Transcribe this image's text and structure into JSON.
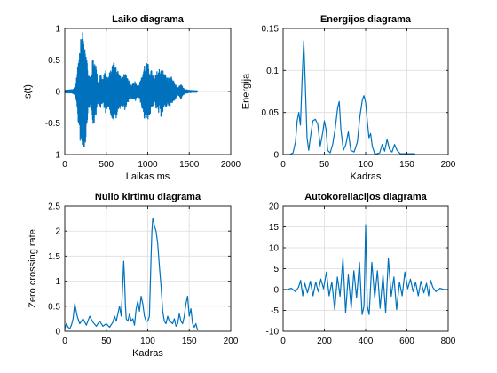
{
  "chart_data": [
    {
      "id": "laiko",
      "type": "line",
      "title": "Laiko diagrama",
      "xlabel": "Laikas ms",
      "ylabel": "s(t)",
      "xlim": [
        0,
        2000
      ],
      "ylim": [
        -1,
        1
      ],
      "xticks": [
        0,
        500,
        1000,
        1500,
        2000
      ],
      "yticks": [
        -1,
        -0.5,
        0,
        0.5,
        1
      ],
      "grid": true,
      "series": [
        {
          "color": "#0072bd",
          "style": "waveform",
          "x": [
            0,
            100,
            130,
            160,
            190,
            220,
            250,
            280,
            310,
            340,
            370,
            400,
            430,
            460,
            490,
            520,
            560,
            600,
            640,
            680,
            720,
            760,
            800,
            840,
            880,
            920,
            960,
            1000,
            1040,
            1080,
            1120,
            1160,
            1200,
            1240,
            1280,
            1320,
            1360,
            1400,
            1430,
            1460,
            1500,
            1600
          ],
          "y": [
            0.02,
            0.03,
            0.1,
            0.48,
            0.85,
            0.95,
            0.85,
            0.3,
            0.25,
            0.55,
            0.5,
            0.15,
            0.3,
            0.2,
            0.35,
            0.22,
            0.4,
            0.52,
            0.35,
            0.22,
            0.3,
            0.2,
            0.1,
            0.18,
            0.08,
            0.2,
            0.45,
            0.45,
            0.35,
            0.22,
            0.35,
            0.4,
            0.3,
            0.22,
            0.25,
            0.15,
            0.05,
            0.12,
            0.05,
            0.03,
            0.02,
            0.01
          ]
        }
      ]
    },
    {
      "id": "energijos",
      "type": "line",
      "title": "Energijos diagrama",
      "xlabel": "Kadras",
      "ylabel": "Energija",
      "xlim": [
        0,
        200
      ],
      "ylim": [
        0,
        0.15
      ],
      "xticks": [
        0,
        50,
        100,
        150,
        200
      ],
      "yticks": [
        0,
        0.05,
        0.1,
        0.15
      ],
      "grid": true,
      "series": [
        {
          "color": "#0072bd",
          "x": [
            0,
            5,
            8,
            12,
            15,
            17,
            19,
            21,
            23,
            25,
            27,
            29,
            31,
            33,
            36,
            39,
            42,
            45,
            48,
            50,
            52,
            54,
            57,
            60,
            63,
            66,
            68,
            70,
            73,
            76,
            79,
            82,
            86,
            90,
            93,
            96,
            98,
            100,
            102,
            104,
            106,
            108,
            111,
            114,
            117,
            120,
            123,
            126,
            129,
            132,
            135,
            138,
            142,
            146,
            150,
            155,
            160
          ],
          "y": [
            0,
            0,
            0,
            0.002,
            0.015,
            0.04,
            0.05,
            0.035,
            0.09,
            0.135,
            0.08,
            0.02,
            0.005,
            0.02,
            0.04,
            0.042,
            0.036,
            0.01,
            0.026,
            0.04,
            0.03,
            0.005,
            0.002,
            0.012,
            0.03,
            0.055,
            0.063,
            0.03,
            0.005,
            0.012,
            0.027,
            0.005,
            0.003,
            0.015,
            0.045,
            0.065,
            0.07,
            0.062,
            0.04,
            0.02,
            0.025,
            0.01,
            0.001,
            0.001,
            0.002,
            0.012,
            0.004,
            0.018,
            0.006,
            0.003,
            0.012,
            0.005,
            0.001,
            0.001,
            0.001,
            0.001,
            0.001
          ]
        }
      ]
    },
    {
      "id": "nulio",
      "type": "line",
      "title": "Nulio kirtimu diagrama",
      "xlabel": "Kadras",
      "ylabel": "Zero crossing rate",
      "xlim": [
        0,
        200
      ],
      "ylim": [
        0,
        2.5
      ],
      "xticks": [
        0,
        50,
        100,
        150,
        200
      ],
      "yticks": [
        0,
        0.5,
        1,
        1.5,
        2,
        2.5
      ],
      "grid": true,
      "series": [
        {
          "color": "#0072bd",
          "x": [
            0,
            2,
            4,
            6,
            8,
            10,
            12,
            15,
            18,
            22,
            26,
            30,
            34,
            38,
            42,
            46,
            50,
            54,
            58,
            60,
            62,
            64,
            66,
            68,
            70,
            71,
            72,
            73,
            74,
            76,
            78,
            80,
            82,
            84,
            86,
            88,
            90,
            92,
            94,
            96,
            98,
            100,
            102,
            104,
            105,
            106,
            107,
            108,
            110,
            112,
            114,
            116,
            118,
            120,
            122,
            124,
            126,
            128,
            130,
            132,
            134,
            136,
            138,
            140,
            142,
            144,
            146,
            148,
            150,
            152,
            154,
            156,
            158,
            160
          ],
          "y": [
            0.05,
            0.15,
            0.08,
            0.05,
            0.12,
            0.25,
            0.55,
            0.3,
            0.15,
            0.25,
            0.12,
            0.3,
            0.18,
            0.1,
            0.2,
            0.1,
            0.15,
            0.08,
            0.18,
            0.3,
            0.2,
            0.35,
            0.5,
            0.3,
            1.0,
            1.4,
            1.05,
            0.55,
            0.25,
            0.2,
            0.35,
            0.2,
            0.25,
            0.12,
            0.45,
            0.6,
            0.4,
            0.7,
            0.55,
            0.3,
            0.2,
            0.2,
            0.3,
            1.5,
            2.0,
            2.25,
            2.2,
            2.1,
            2.0,
            1.75,
            1.3,
            0.9,
            0.4,
            0.2,
            0.15,
            0.3,
            0.2,
            0.18,
            0.15,
            0.25,
            0.1,
            0.15,
            0.35,
            0.2,
            0.15,
            0.3,
            0.55,
            0.7,
            0.3,
            0.45,
            0.15,
            0.08,
            0.15,
            0.02
          ]
        }
      ]
    },
    {
      "id": "autokoreliacijos",
      "type": "line",
      "title": "Autokoreliacijos diagrama",
      "xlabel": "",
      "ylabel": "",
      "xlim": [
        0,
        800
      ],
      "ylim": [
        -10,
        20
      ],
      "xticks": [
        0,
        200,
        400,
        600,
        800
      ],
      "yticks": [
        -10,
        -5,
        0,
        5,
        10,
        15,
        20
      ],
      "grid": true,
      "series": [
        {
          "color": "#0072bd",
          "x": [
            0,
            20,
            40,
            60,
            75,
            85,
            95,
            105,
            118,
            132,
            145,
            158,
            170,
            183,
            196,
            210,
            223,
            236,
            250,
            263,
            276,
            290,
            303,
            316,
            330,
            343,
            356,
            370,
            383,
            392,
            400,
            408,
            417,
            430,
            444,
            457,
            470,
            484,
            497,
            510,
            524,
            537,
            550,
            564,
            577,
            590,
            604,
            617,
            630,
            642,
            655,
            668,
            682,
            695,
            705,
            715,
            725,
            740,
            760,
            780,
            800
          ],
          "y": [
            0,
            0,
            0.3,
            -0.5,
            0.6,
            2.2,
            -1.5,
            1.5,
            -0.8,
            2.0,
            -1.5,
            1.8,
            -0.5,
            2.5,
            0.2,
            4.2,
            -1.5,
            1.8,
            -4.8,
            3.0,
            -1.6,
            7.5,
            -5.5,
            3.5,
            -4.5,
            4.5,
            -2.0,
            6.5,
            -6.0,
            -4.0,
            15.5,
            -4.0,
            -6.0,
            6.5,
            -2.0,
            4.5,
            -4.5,
            3.5,
            -5.5,
            7.5,
            -1.6,
            3.0,
            -4.8,
            1.8,
            -1.5,
            4.2,
            0.2,
            2.5,
            -0.5,
            1.8,
            -1.5,
            2.0,
            -0.8,
            1.5,
            -1.5,
            2.2,
            0.6,
            -0.5,
            0.3,
            0,
            0
          ]
        }
      ]
    }
  ]
}
